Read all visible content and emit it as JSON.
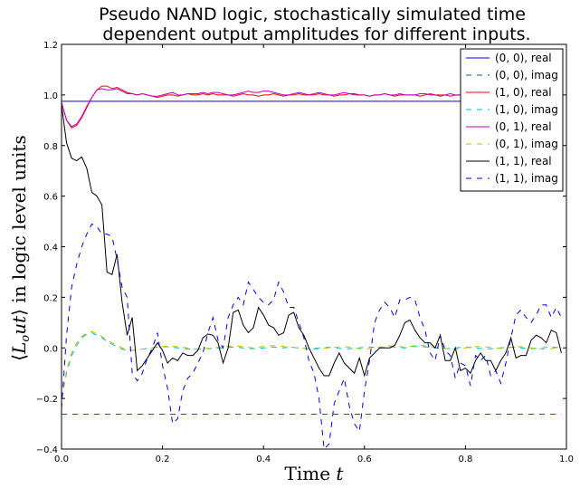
{
  "chart_data": {
    "type": "line",
    "title_lines": [
      "Pseudo NAND logic, stochastically simulated time",
      "dependent output amplitudes for different inputs."
    ],
    "xlabel": "Time t",
    "ylabel": "⟨L_o ut⟩ in logic level units",
    "xlim": [
      0.0,
      1.0
    ],
    "ylim": [
      -0.4,
      1.2
    ],
    "xticks": [
      0.0,
      0.2,
      0.4,
      0.6,
      0.8,
      1.0
    ],
    "yticks": [
      -0.4,
      -0.2,
      0.0,
      0.2,
      0.4,
      0.6,
      0.8,
      1.0,
      1.2
    ],
    "xtick_labels": [
      "0.0",
      "0.2",
      "0.4",
      "0.6",
      "0.8",
      "1.0"
    ],
    "ytick_labels": [
      "−0.4",
      "−0.2",
      "0.0",
      "0.2",
      "0.4",
      "0.6",
      "0.8",
      "1.0",
      "1.2"
    ],
    "grid": false,
    "legend_position": "top-right",
    "x": [
      0,
      0.01,
      0.02,
      0.03,
      0.04,
      0.05,
      0.06,
      0.07,
      0.08,
      0.09,
      0.1,
      0.11,
      0.12,
      0.13,
      0.14,
      0.15,
      0.16,
      0.17,
      0.18,
      0.19,
      0.2,
      0.21,
      0.22,
      0.23,
      0.24,
      0.25,
      0.26,
      0.27,
      0.28,
      0.29,
      0.3,
      0.31,
      0.32,
      0.33,
      0.34,
      0.35,
      0.36,
      0.37,
      0.38,
      0.39,
      0.4,
      0.41,
      0.42,
      0.43,
      0.44,
      0.45,
      0.46,
      0.47,
      0.48,
      0.49,
      0.5,
      0.51,
      0.52,
      0.53,
      0.54,
      0.55,
      0.56,
      0.57,
      0.58,
      0.59,
      0.6,
      0.61,
      0.62,
      0.63,
      0.64,
      0.65,
      0.66,
      0.67,
      0.68,
      0.69,
      0.7,
      0.71,
      0.72,
      0.73,
      0.74,
      0.75,
      0.76,
      0.77,
      0.78,
      0.79,
      0.8,
      0.81,
      0.82,
      0.83,
      0.84,
      0.85,
      0.86,
      0.87,
      0.88,
      0.89,
      0.9,
      0.91,
      0.92,
      0.93,
      0.94,
      0.95,
      0.96,
      0.97,
      0.98,
      0.99
    ],
    "series": [
      {
        "name": "(0, 0), real",
        "color": "#0000ff",
        "dash": "solid",
        "values": [
          0.975,
          0.975,
          0.975,
          0.975,
          0.975,
          0.975,
          0.975,
          0.975,
          0.975,
          0.975,
          0.975,
          0.975,
          0.975,
          0.975,
          0.975,
          0.975,
          0.975,
          0.975,
          0.975,
          0.975,
          0.975,
          0.975,
          0.975,
          0.975,
          0.975,
          0.975,
          0.975,
          0.975,
          0.975,
          0.975,
          0.975,
          0.975,
          0.975,
          0.975,
          0.975,
          0.975,
          0.975,
          0.975,
          0.975,
          0.975,
          0.975,
          0.975,
          0.975,
          0.975,
          0.975,
          0.975,
          0.975,
          0.975,
          0.975,
          0.975,
          0.975,
          0.975,
          0.975,
          0.975,
          0.975,
          0.975,
          0.975,
          0.975,
          0.975,
          0.975,
          0.975,
          0.975,
          0.975,
          0.975,
          0.975,
          0.975,
          0.975,
          0.975,
          0.975,
          0.975,
          0.975,
          0.975,
          0.975,
          0.975,
          0.975,
          0.975,
          0.975,
          0.975,
          0.975,
          0.975,
          0.975,
          0.975,
          0.975,
          0.975,
          0.975,
          0.975,
          0.975,
          0.975,
          0.975,
          0.975,
          0.975,
          0.975,
          0.975,
          0.975,
          0.975,
          0.975,
          0.975,
          0.975,
          0.975,
          0.975
        ]
      },
      {
        "name": "(0, 0), imag",
        "color": "#008000",
        "dash": "dashed",
        "values": [
          -0.262,
          -0.262,
          -0.262,
          -0.262,
          -0.262,
          -0.262,
          -0.262,
          -0.262,
          -0.262,
          -0.262,
          -0.262,
          -0.262,
          -0.262,
          -0.262,
          -0.262,
          -0.262,
          -0.262,
          -0.262,
          -0.262,
          -0.262,
          -0.262,
          -0.262,
          -0.262,
          -0.262,
          -0.262,
          -0.262,
          -0.262,
          -0.262,
          -0.262,
          -0.262,
          -0.262,
          -0.262,
          -0.262,
          -0.262,
          -0.262,
          -0.262,
          -0.262,
          -0.262,
          -0.262,
          -0.262,
          -0.262,
          -0.262,
          -0.262,
          -0.262,
          -0.262,
          -0.262,
          -0.262,
          -0.262,
          -0.262,
          -0.262,
          -0.262,
          -0.262,
          -0.262,
          -0.262,
          -0.262,
          -0.262,
          -0.262,
          -0.262,
          -0.262,
          -0.262,
          -0.262,
          -0.262,
          -0.262,
          -0.262,
          -0.262,
          -0.262,
          -0.262,
          -0.262,
          -0.262,
          -0.262,
          -0.262,
          -0.262,
          -0.262,
          -0.262,
          -0.262,
          -0.262,
          -0.262,
          -0.262,
          -0.262,
          -0.262,
          -0.262,
          -0.262,
          -0.262,
          -0.262,
          -0.262,
          -0.262,
          -0.262,
          -0.262,
          -0.262,
          -0.262,
          -0.262,
          -0.262,
          -0.262,
          -0.262,
          -0.262,
          -0.262,
          -0.262,
          -0.262,
          -0.262,
          -0.262
        ]
      },
      {
        "name": "(1, 0), real",
        "color": "#ff0000",
        "dash": "solid",
        "values": [
          0.97,
          0.9,
          0.87,
          0.88,
          0.91,
          0.95,
          0.99,
          1.02,
          1.035,
          1.035,
          1.025,
          1.03,
          1.02,
          1.01,
          1.005,
          1.0,
          1.005,
          1.0,
          0.995,
          0.99,
          0.995,
          1.0,
          1.0,
          0.995,
          1.0,
          1.005,
          1.0,
          1.0,
          1.005,
          1.0,
          1.005,
          1.0,
          1.0,
          1.0,
          0.995,
          1.0,
          1.005,
          1.0,
          1.0,
          0.995,
          1.0,
          1.0,
          1.005,
          1.0,
          0.995,
          1.0,
          1.0,
          1.005,
          1.0,
          1.0,
          1.0,
          1.005,
          1.0,
          1.0,
          0.995,
          1.0,
          1.0,
          1.005,
          1.005,
          1.0,
          1.0,
          0.995,
          1.0,
          1.0,
          1.005,
          1.0,
          0.995,
          1.0,
          1.0,
          1.0,
          1.0,
          0.995,
          1.0,
          1.005,
          1.0,
          1.0,
          1.0,
          0.995,
          1.0,
          1.0,
          1.0,
          1.005,
          1.0,
          1.0,
          0.995,
          1.0,
          1.0,
          1.0,
          1.0,
          1.005,
          1.0,
          1.0,
          1.0,
          0.995,
          1.0,
          1.0,
          1.0,
          1.005,
          1.0,
          1.0
        ]
      },
      {
        "name": "(1, 0), imag",
        "color": "#00bfbf",
        "dash": "dashed",
        "values": [
          -0.2,
          -0.1,
          -0.03,
          0.01,
          0.04,
          0.055,
          0.06,
          0.05,
          0.04,
          0.025,
          0.015,
          0.005,
          -0.005,
          -0.01,
          -0.01,
          -0.008,
          -0.005,
          -0.002,
          0.0,
          0.003,
          0.005,
          0.004,
          0.002,
          0.0,
          -0.002,
          -0.004,
          -0.006,
          -0.005,
          -0.004,
          -0.003,
          -0.002,
          -0.001,
          0.0,
          0.002,
          0.003,
          0.002,
          0.0,
          -0.002,
          -0.003,
          -0.002,
          0.0,
          0.002,
          0.003,
          0.002,
          0.0,
          0.003,
          0.002,
          0.0,
          -0.002,
          -0.003,
          -0.002,
          0.0,
          0.002,
          0.002,
          0.0,
          -0.002,
          -0.004,
          -0.003,
          -0.002,
          0.0,
          0.002,
          0.003,
          0.002,
          0.0,
          0.002,
          0.004,
          0.003,
          0.002,
          0.0,
          0.004,
          0.006,
          0.005,
          0.004,
          0.002,
          0.0,
          -0.002,
          -0.003,
          -0.002,
          0.0,
          0.002,
          0.003,
          0.002,
          0.0,
          -0.002,
          -0.004,
          -0.003,
          -0.002,
          0.0,
          0.002,
          0.003,
          0.002,
          0.0,
          -0.002,
          -0.003,
          -0.002,
          0.0,
          0.002,
          0.003,
          0.002,
          0.0
        ]
      },
      {
        "name": "(0, 1), real",
        "color": "#bf00bf",
        "dash": "solid",
        "values": [
          0.97,
          0.9,
          0.875,
          0.885,
          0.915,
          0.955,
          0.99,
          1.02,
          1.025,
          1.02,
          1.02,
          1.025,
          1.015,
          1.005,
          1.005,
          1.0,
          1.005,
          1.0,
          0.995,
          0.995,
          1.0,
          1.005,
          1.01,
          1.0,
          1.0,
          1.005,
          1.005,
          1.005,
          1.01,
          1.005,
          1.01,
          1.01,
          1.005,
          1.0,
          1.0,
          1.005,
          1.01,
          1.015,
          1.01,
          1.01,
          1.015,
          1.015,
          1.01,
          1.005,
          1.0,
          1.0,
          1.005,
          1.01,
          1.005,
          1.0,
          1.005,
          1.01,
          1.005,
          1.0,
          1.0,
          1.005,
          1.01,
          1.005,
          1.0,
          1.0,
          1.0,
          0.995,
          1.0,
          1.0,
          1.005,
          1.0,
          1.0,
          1.005,
          1.0,
          1.0,
          1.0,
          1.005,
          1.005,
          1.0,
          1.0,
          0.995,
          1.0,
          1.005,
          1.0,
          1.0,
          1.0,
          1.005,
          1.005,
          1.0,
          1.0,
          1.0,
          1.005,
          1.0,
          1.0,
          1.0,
          1.005,
          1.0,
          1.0,
          1.0,
          1.005,
          1.0,
          1.0,
          1.0,
          1.005,
          1.0
        ]
      },
      {
        "name": "(0, 1), imag",
        "color": "#bfbf00",
        "dash": "dashed",
        "values": [
          -0.2,
          -0.09,
          -0.02,
          0.02,
          0.045,
          0.06,
          0.065,
          0.055,
          0.045,
          0.03,
          0.02,
          0.01,
          0.0,
          -0.005,
          -0.01,
          -0.008,
          -0.005,
          -0.003,
          0.0,
          0.004,
          0.006,
          0.007,
          0.006,
          0.005,
          0.003,
          0.0,
          -0.003,
          -0.005,
          -0.004,
          -0.002,
          0.0,
          0.002,
          0.004,
          0.006,
          0.008,
          0.007,
          0.005,
          0.002,
          0.0,
          0.003,
          0.006,
          0.008,
          0.009,
          0.008,
          0.006,
          0.004,
          0.002,
          0.0,
          -0.002,
          -0.004,
          -0.005,
          -0.004,
          -0.002,
          0.0,
          0.002,
          0.004,
          0.005,
          0.003,
          0.0,
          -0.003,
          -0.005,
          -0.003,
          0.0,
          0.003,
          0.006,
          0.008,
          0.007,
          0.005,
          0.003,
          0.006,
          0.009,
          0.01,
          0.008,
          0.005,
          0.002,
          0.0,
          -0.002,
          -0.004,
          -0.005,
          -0.003,
          0.0,
          0.003,
          0.005,
          0.006,
          0.004,
          0.002,
          0.0,
          -0.002,
          0.0,
          0.002,
          0.004,
          0.005,
          0.003,
          0.0,
          -0.002,
          -0.004,
          -0.005,
          -0.003,
          0.0,
          0.002
        ]
      },
      {
        "name": "(1, 1), real",
        "color": "#000000",
        "dash": "solid",
        "values": [
          0.96,
          0.81,
          0.75,
          0.74,
          0.755,
          0.71,
          0.615,
          0.6,
          0.565,
          0.3,
          0.29,
          0.37,
          0.18,
          0.05,
          0.12,
          -0.09,
          -0.07,
          -0.04,
          -0.01,
          0.02,
          -0.01,
          -0.06,
          -0.04,
          -0.05,
          -0.02,
          -0.03,
          -0.03,
          -0.01,
          0.04,
          0.055,
          0.05,
          0.02,
          -0.06,
          0.0,
          0.14,
          0.15,
          0.09,
          0.06,
          0.08,
          0.16,
          0.13,
          0.09,
          0.08,
          0.05,
          0.06,
          0.13,
          0.14,
          0.08,
          0.05,
          0.0,
          -0.04,
          -0.08,
          -0.11,
          -0.11,
          -0.06,
          -0.02,
          -0.06,
          -0.08,
          -0.1,
          -0.04,
          -0.11,
          -0.04,
          -0.02,
          0.0,
          0.0,
          0.0,
          0.01,
          0.05,
          0.1,
          0.11,
          0.07,
          0.04,
          0.02,
          0.02,
          0.0,
          0.05,
          -0.05,
          -0.05,
          0.0,
          -0.09,
          -0.08,
          -0.1,
          -0.05,
          -0.02,
          -0.05,
          -0.05,
          -0.09,
          -0.05,
          -0.02,
          0.04,
          -0.04,
          -0.03,
          -0.03,
          0.03,
          0.05,
          0.04,
          0.02,
          0.07,
          0.06,
          -0.02
        ]
      },
      {
        "name": "(1, 1), imag",
        "color": "#0000ff",
        "dash": "dashed",
        "values": [
          -0.24,
          0.05,
          0.24,
          0.33,
          0.4,
          0.45,
          0.49,
          0.48,
          0.45,
          0.45,
          0.44,
          0.35,
          0.24,
          0.2,
          -0.1,
          -0.13,
          -0.1,
          -0.04,
          0.0,
          0.06,
          -0.07,
          -0.16,
          -0.3,
          -0.28,
          -0.17,
          -0.12,
          -0.1,
          -0.06,
          -0.02,
          0.06,
          0.12,
          0.03,
          0.0,
          0.12,
          0.17,
          0.2,
          0.17,
          0.26,
          0.23,
          0.2,
          0.18,
          0.17,
          0.19,
          0.26,
          0.22,
          0.16,
          0.16,
          0.1,
          0.04,
          -0.05,
          -0.1,
          -0.2,
          -0.4,
          -0.38,
          -0.22,
          -0.17,
          -0.12,
          -0.23,
          -0.3,
          -0.33,
          -0.17,
          -0.05,
          0.1,
          0.15,
          0.18,
          0.16,
          0.12,
          0.19,
          0.19,
          0.2,
          0.19,
          0.12,
          0.07,
          -0.02,
          -0.05,
          0.05,
          -0.01,
          -0.03,
          -0.12,
          -0.06,
          -0.07,
          -0.15,
          -0.03,
          -0.05,
          -0.03,
          -0.11,
          -0.09,
          -0.14,
          -0.06,
          0.04,
          0.13,
          0.15,
          0.12,
          0.1,
          0.13,
          0.17,
          0.17,
          0.12,
          0.16,
          0.12
        ]
      }
    ]
  }
}
